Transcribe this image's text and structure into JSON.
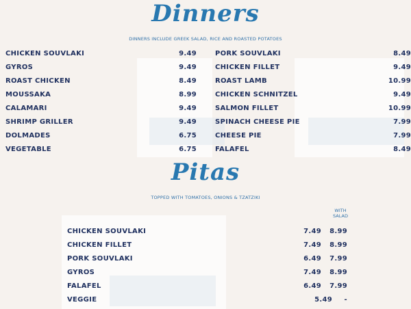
{
  "dinners": {
    "title": "Dinners",
    "subtitle": "DINNERS INCLUDE GREEK SALAD, RICE AND ROASTED POTATOES",
    "left": [
      {
        "name": "CHICKEN SOUVLAKI",
        "price": "9.49"
      },
      {
        "name": "GYROS",
        "price": "9.49"
      },
      {
        "name": "ROAST CHICKEN",
        "price": "8.49"
      },
      {
        "name": "MOUSSAKA",
        "price": "8.99"
      },
      {
        "name": "CALAMARI",
        "price": "9.49"
      },
      {
        "name": "SHRIMP GRILLER",
        "price": "9.49"
      },
      {
        "name": "DOLMADES",
        "price": "6.75"
      },
      {
        "name": "VEGETABLE",
        "price": "6.75"
      }
    ],
    "right": [
      {
        "name": "PORK SOUVLAKI",
        "price": "8.49"
      },
      {
        "name": "CHICKEN FILLET",
        "price": "9.49"
      },
      {
        "name": "ROAST LAMB",
        "price": "10.99"
      },
      {
        "name": "CHICKEN SCHNITZEL",
        "price": "9.49"
      },
      {
        "name": "SALMON FILLET",
        "price": "10.99"
      },
      {
        "name": "SPINACH CHEESE PIE",
        "price": "7.99"
      },
      {
        "name": "CHEESE PIE",
        "price": "7.99"
      },
      {
        "name": "FALAFEL",
        "price": "8.49"
      }
    ]
  },
  "pitas": {
    "title": "Pitas",
    "subtitle": "TOPPED WITH TOMATOES, ONIONS & TZATZIKI",
    "with_salad_header": [
      "WITH",
      "SALAD"
    ],
    "items": [
      {
        "name": "CHICKEN SOUVLAKI",
        "price": "7.49",
        "with_salad": "8.99"
      },
      {
        "name": "CHICKEN FILLET",
        "price": "7.49",
        "with_salad": "8.99"
      },
      {
        "name": "PORK SOUVLAKI",
        "price": "6.49",
        "with_salad": "7.99"
      },
      {
        "name": "GYROS",
        "price": "7.49",
        "with_salad": "8.99"
      },
      {
        "name": "FALAFEL",
        "price": "6.49",
        "with_salad": "7.99"
      },
      {
        "name": "VEGGIE",
        "price": "5.49",
        "with_salad": "-"
      }
    ]
  },
  "colors": {
    "heading": "#2878b0",
    "item_text": "#1e2f5e",
    "background": "#f6f2ee"
  }
}
